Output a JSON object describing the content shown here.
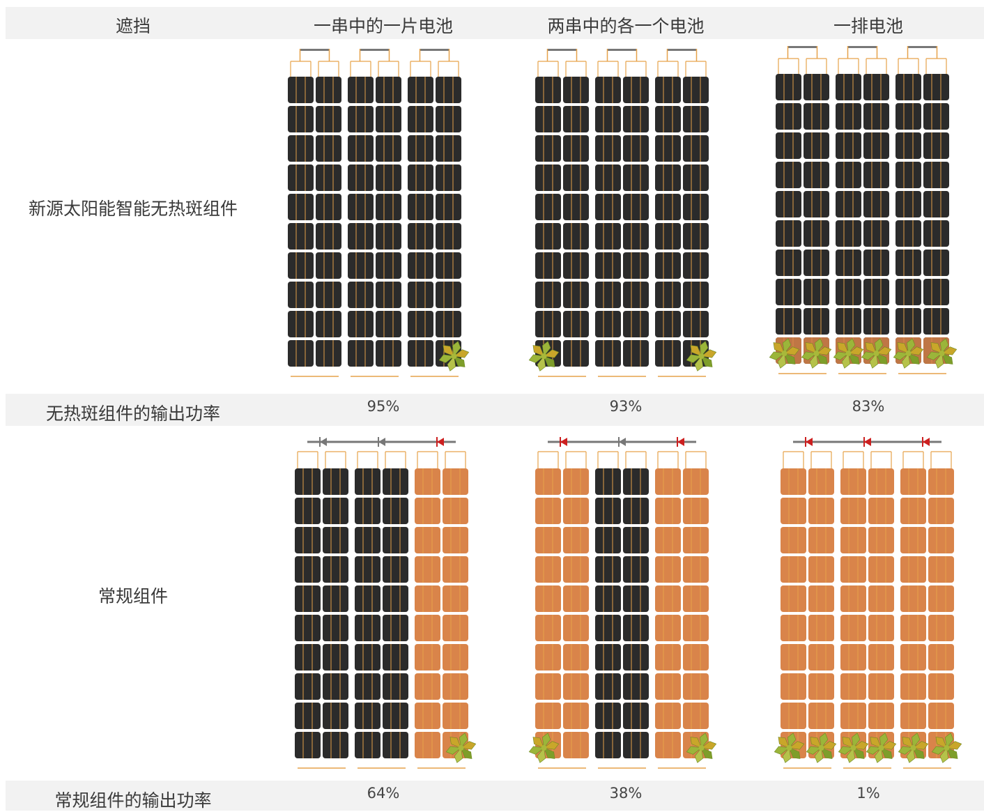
{
  "header": {
    "col0": "遮挡",
    "col1": "一串中的一片电池",
    "col2": "两串中的各一个电池",
    "col3": "一排电池"
  },
  "rows": {
    "smart_label": "新源太阳能智能无热斑组件",
    "smart_output_label": "无热斑组件的输出功率",
    "smart_output": [
      "95%",
      "93%",
      "83%"
    ],
    "regular_label": "常规组件",
    "regular_output_label": "常规组件的输出功率",
    "regular_output": [
      "64%",
      "38%",
      "1%"
    ]
  },
  "colors": {
    "cell_dark": "#2b2b2b",
    "cell_orange": "#d9844a",
    "wire": "#e6a24a",
    "bus": "#777777",
    "diode_active": "#cc1f1f",
    "diode_idle": "#777777",
    "leaf": "#8fae2e",
    "band_bg": "#f2f2f2"
  },
  "panels": {
    "smart": [
      {
        "shaded": [
          [
            9,
            5
          ]
        ],
        "active_strings": []
      },
      {
        "shaded": [
          [
            9,
            0
          ],
          [
            9,
            5
          ]
        ],
        "active_strings": []
      },
      {
        "shaded": [
          [
            9,
            0
          ],
          [
            9,
            1
          ],
          [
            9,
            2
          ],
          [
            9,
            3
          ],
          [
            9,
            4
          ],
          [
            9,
            5
          ]
        ],
        "active_strings": []
      }
    ],
    "regular": [
      {
        "shaded": [
          [
            9,
            5
          ]
        ],
        "active_strings": [
          2
        ]
      },
      {
        "shaded": [
          [
            9,
            0
          ],
          [
            9,
            5
          ]
        ],
        "active_strings": [
          0,
          2
        ]
      },
      {
        "shaded": [
          [
            9,
            0
          ],
          [
            9,
            1
          ],
          [
            9,
            2
          ],
          [
            9,
            3
          ],
          [
            9,
            4
          ],
          [
            9,
            5
          ]
        ],
        "active_strings": [
          0,
          1,
          2
        ]
      }
    ]
  }
}
